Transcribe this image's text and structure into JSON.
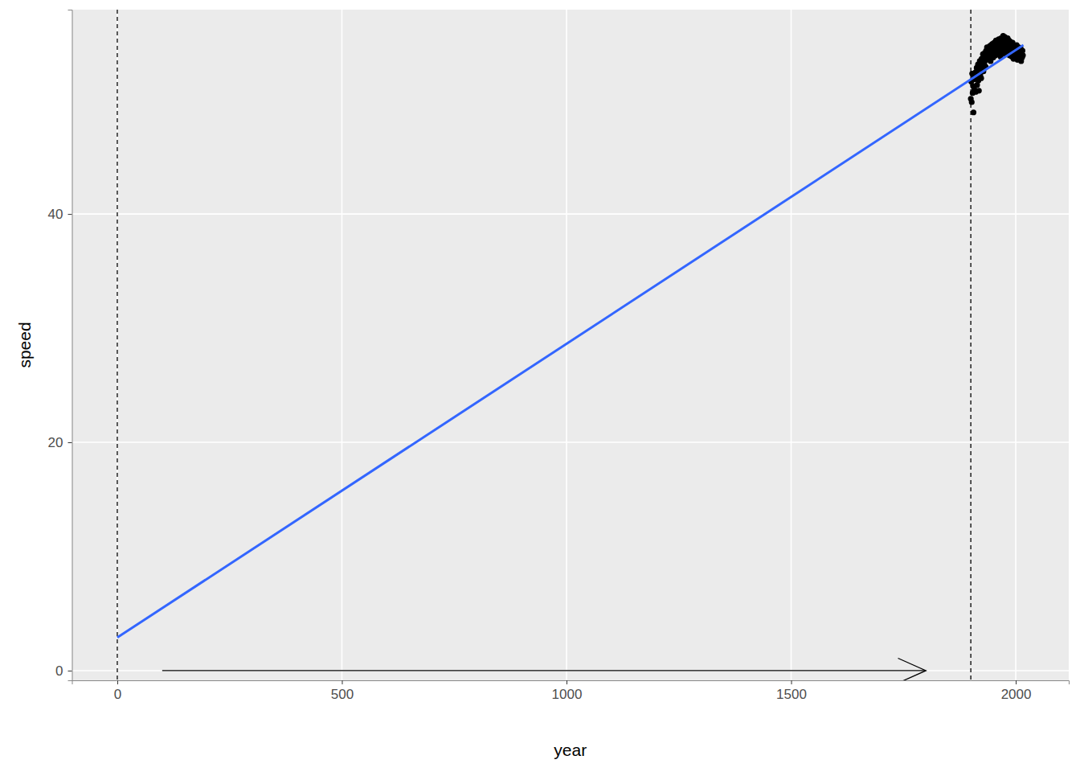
{
  "chart_data": {
    "type": "scatter",
    "x_label": "year",
    "y_label": "speed",
    "xlim": [
      -101,
      2118
    ],
    "ylim": [
      -0.85,
      57.9
    ],
    "xticks": [
      0,
      500,
      1000,
      1500,
      2000
    ],
    "yticks": [
      0,
      20,
      40
    ],
    "grid": true,
    "series": [
      {
        "type": "scatter",
        "color": "#000000",
        "marker": "circle",
        "x": [
          1900,
          1901,
          1902,
          1903,
          1904,
          1905,
          1906,
          1907,
          1908,
          1909,
          1910,
          1911,
          1912,
          1913,
          1914,
          1915,
          1916,
          1917,
          1918,
          1919,
          1920,
          1921,
          1922,
          1923,
          1924,
          1925,
          1926,
          1927,
          1928,
          1929,
          1930,
          1931,
          1932,
          1933,
          1934,
          1935,
          1936,
          1937,
          1938,
          1939,
          1940,
          1941,
          1942,
          1943,
          1944,
          1945,
          1946,
          1947,
          1948,
          1949,
          1950,
          1951,
          1952,
          1953,
          1954,
          1955,
          1956,
          1957,
          1958,
          1959,
          1960,
          1961,
          1962,
          1963,
          1964,
          1965,
          1966,
          1967,
          1968,
          1969,
          1970,
          1971,
          1972,
          1973,
          1974,
          1975,
          1976,
          1977,
          1978,
          1979,
          1980,
          1981,
          1982,
          1983,
          1984,
          1985,
          1986,
          1987,
          1988,
          1989,
          1990,
          1991,
          1992,
          1993,
          1994,
          1995,
          1996,
          1997,
          1998,
          1999,
          2000,
          2001,
          2002,
          2003,
          2004,
          2005,
          2006,
          2007,
          2008,
          2009,
          2010,
          2011,
          2012,
          2013,
          2014,
          2015,
          2016
        ],
        "values": [
          50.1,
          51.6,
          49.8,
          52.3,
          50.6,
          51.2,
          48.9,
          52.0,
          50.9,
          51.8,
          52.4,
          50.7,
          51.9,
          52.8,
          51.3,
          52.6,
          53.1,
          51.7,
          50.8,
          52.9,
          53.4,
          52.2,
          53.0,
          51.9,
          53.6,
          52.7,
          53.3,
          54.0,
          52.5,
          53.8,
          53.2,
          54.1,
          53.7,
          52.9,
          54.3,
          53.5,
          54.6,
          53.9,
          54.2,
          53.6,
          54.5,
          53.8,
          54.7,
          54.0,
          53.4,
          54.8,
          54.3,
          53.9,
          54.9,
          54.4,
          53.7,
          54.6,
          55.0,
          54.1,
          54.8,
          53.9,
          55.2,
          54.5,
          54.0,
          55.1,
          54.7,
          54.2,
          55.3,
          54.9,
          54.4,
          55.0,
          53.8,
          55.4,
          54.6,
          54.1,
          55.2,
          54.8,
          55.6,
          54.3,
          55.1,
          54.7,
          55.5,
          54.0,
          55.3,
          54.9,
          54.5,
          55.0,
          55.4,
          54.2,
          54.8,
          55.2,
          53.9,
          54.6,
          55.1,
          54.4,
          54.9,
          53.8,
          54.5,
          55.0,
          54.2,
          53.6,
          54.7,
          54.1,
          53.9,
          54.6,
          54.3,
          53.7,
          54.8,
          54.0,
          53.5,
          54.4,
          53.9,
          54.6,
          53.6,
          54.2,
          53.8,
          54.5,
          53.4,
          54.1,
          53.7,
          54.3,
          53.9
        ]
      },
      {
        "type": "line",
        "color": "#3366FF",
        "line_style": "solid",
        "x": [
          0,
          2017
        ],
        "values": [
          2.9,
          54.8
        ]
      }
    ],
    "vlines": [
      0,
      1900
    ],
    "arrow": {
      "x": [
        100,
        1800
      ],
      "y": [
        0,
        0
      ]
    }
  }
}
